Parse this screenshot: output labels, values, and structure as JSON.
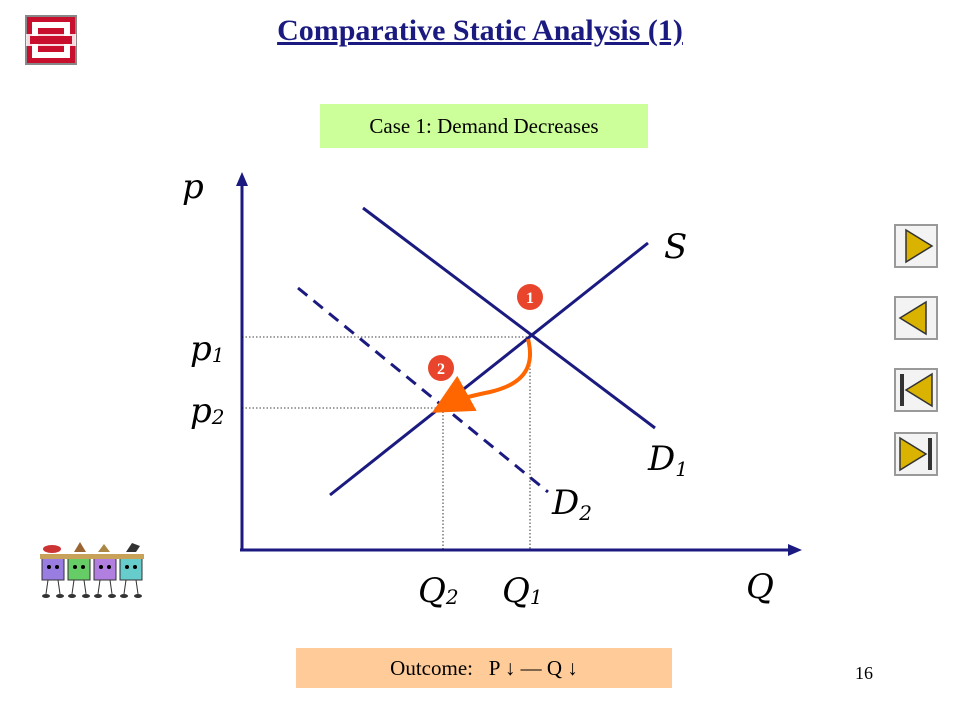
{
  "slide": {
    "title": "Comparative Static Analysis (1)",
    "case_label": "Case 1: Demand Decreases",
    "outcome": "Outcome:   P ↓ — Q ↓",
    "page_number": "16"
  },
  "graph": {
    "y_axis_label": "p",
    "x_axis_label": "Q",
    "price_labels": [
      {
        "base": "p",
        "sub": "1"
      },
      {
        "base": "p",
        "sub": "2"
      }
    ],
    "quantity_labels": [
      {
        "base": "Q",
        "sub": "2"
      },
      {
        "base": "Q",
        "sub": "1"
      }
    ],
    "curves": {
      "supply": {
        "base": "S",
        "sub": ""
      },
      "demand_initial": {
        "base": "D",
        "sub": "1"
      },
      "demand_new": {
        "base": "D",
        "sub": "2"
      }
    },
    "equilibrium_markers": [
      "1",
      "2"
    ]
  },
  "navigation": {
    "buttons": [
      "next-icon",
      "previous-icon",
      "first-icon",
      "last-icon"
    ]
  },
  "colors": {
    "title": "#1a1a80",
    "curve": "#1a1a80",
    "arrow": "#ff6600",
    "marker": "#e8452c",
    "case_box": "#ccff99",
    "outcome_box": "#ffcc99",
    "nav_fill": "#d9b300"
  }
}
